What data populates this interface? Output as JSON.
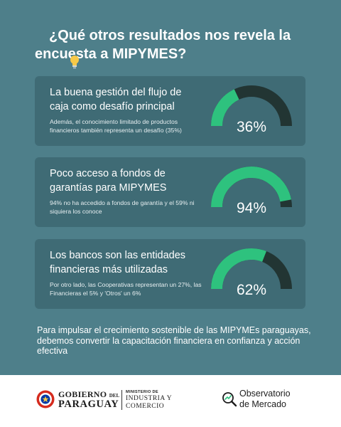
{
  "header": {
    "icon": "lightbulb-icon",
    "title": "¿Qué otros resultados nos revela la encuesta a MIPYMES?"
  },
  "cards": [
    {
      "title": "La buena gestión del flujo de caja como desafío principal",
      "description": "Además, el conocimiento limitado de productos financieros también representa un desafío (35%)",
      "percent_label": "36%",
      "percent_value": 36
    },
    {
      "title": "Poco acceso a fondos de garantías para MIPYMES",
      "description": "94% no ha accedido a fondos de garantía y el 59% ni siquiera los conoce",
      "percent_label": "94%",
      "percent_value": 94
    },
    {
      "title": "Los bancos son las entidades financieras más utilizadas",
      "description": "Por otro lado, las Cooperativas representan un 27%, las Financieras el 5% y 'Otros' un 6%",
      "percent_label": "62%",
      "percent_value": 62
    }
  ],
  "closing_text": "Para impulsar el crecimiento sostenible de las MIPYMEs paraguayas, debemos convertir la capacitación financiera en confianza y acción efectiva",
  "footer": {
    "gobierno_line1": "GOBIERNO",
    "gobierno_del": "DEL",
    "gobierno_line2": "PARAGUAY",
    "ministerio_line1": "MINISTERIO DE",
    "ministerio_line2": "INDUSTRIA Y",
    "ministerio_line3": "COMERCIO",
    "observatorio_line1": "Observatorio",
    "observatorio_line2": "de Mercado"
  },
  "colors": {
    "background": "#4e7f8a",
    "card": "#3f6b75",
    "gauge_fill": "#2ec27e",
    "gauge_track": "#223533"
  }
}
